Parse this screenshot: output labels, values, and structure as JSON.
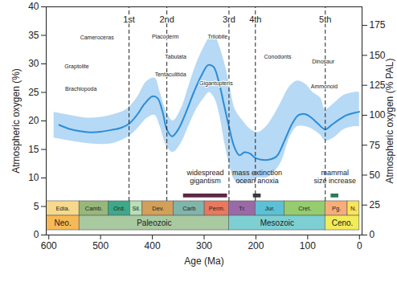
{
  "chart_data": {
    "type": "line",
    "x_label": "Age (Ma)",
    "y_label": "Atmospheric oxygen (%)",
    "y2_label": "Atmospheric oxygen (% PAL)",
    "xlim": [
      605,
      -5
    ],
    "xticks": [
      600,
      500,
      400,
      300,
      200,
      100,
      0
    ],
    "ylim": [
      0,
      40
    ],
    "yticks": [
      0,
      5,
      10,
      15,
      20,
      25,
      30,
      35,
      40
    ],
    "y2lim": [
      0,
      190.5
    ],
    "y2ticks": [
      0,
      25,
      50,
      75,
      100,
      125,
      150,
      175
    ],
    "grid": false,
    "color": "#2b8cd8",
    "x": [
      580,
      560,
      540,
      520,
      500,
      480,
      460,
      445,
      430,
      415,
      400,
      390,
      380,
      372,
      362,
      350,
      335,
      320,
      305,
      292,
      282,
      272,
      262,
      252,
      242,
      232,
      222,
      212,
      201,
      190,
      175,
      160,
      145,
      130,
      118,
      105,
      92,
      80,
      66,
      55,
      40,
      25,
      10,
      0
    ],
    "values": [
      19.3,
      18.6,
      18.2,
      18.0,
      18.1,
      18.4,
      18.8,
      19.5,
      21,
      23,
      24.3,
      24,
      21.5,
      18.5,
      17.3,
      18.5,
      21.5,
      25,
      28,
      29.8,
      29.5,
      27,
      23,
      19,
      15.5,
      14,
      14.5,
      14.3,
      13.5,
      13.2,
      13.2,
      13.8,
      16.5,
      19.5,
      21,
      21.2,
      20.5,
      19.5,
      18.5,
      19.2,
      20.2,
      21,
      21.4,
      21.6
    ],
    "band": {
      "color": "#a9d2f3",
      "x": [
        590,
        560,
        520,
        480,
        450,
        430,
        410,
        395,
        385,
        372,
        360,
        345,
        330,
        315,
        300,
        290,
        280,
        270,
        260,
        250,
        240,
        225,
        210,
        195,
        180,
        165,
        150,
        135,
        120,
        105,
        90,
        75,
        66,
        50,
        30,
        10,
        0
      ],
      "lower": [
        17,
        16.5,
        16,
        16,
        17,
        18.5,
        20.5,
        21,
        19,
        15.5,
        14.5,
        16,
        19,
        22,
        24,
        25,
        24,
        21,
        16,
        12,
        9.5,
        9,
        9.5,
        10,
        10,
        11,
        13,
        17,
        19,
        19,
        18.5,
        17.5,
        16.5,
        17,
        18.5,
        19,
        19
      ],
      "upper": [
        21.5,
        21,
        20.5,
        21,
        22,
        24,
        27,
        27.5,
        25,
        21.5,
        20,
        22,
        26,
        30,
        33,
        34.5,
        35,
        33,
        30,
        26,
        22,
        20,
        18.5,
        18,
        19,
        21,
        23.5,
        26,
        27,
        26.5,
        25,
        24,
        22,
        23,
        24.5,
        25,
        25
      ]
    },
    "extinctions": {
      "line_style": "dashed",
      "labels": [
        "1st",
        "2nd",
        "3rd",
        "4th",
        "5th"
      ],
      "x": [
        445,
        372,
        252,
        201,
        66
      ]
    },
    "annotations": [
      {
        "text": "Cameroceras",
        "x": 507,
        "y": 34.6
      },
      {
        "text": "Graptolite",
        "x": 546,
        "y": 29.6
      },
      {
        "text": "Brachiopoda",
        "x": 538,
        "y": 25.6
      },
      {
        "text": "Placoderm",
        "x": 375,
        "y": 34.8
      },
      {
        "text": "Tabulata",
        "x": 355,
        "y": 31.2
      },
      {
        "text": "Tentaculitida",
        "x": 365,
        "y": 28.2
      },
      {
        "text": "Trilobite",
        "x": 274,
        "y": 34.8
      },
      {
        "text": "Gigantopteris",
        "x": 277,
        "y": 26.6
      },
      {
        "text": "Conodonts",
        "x": 158,
        "y": 31.2
      },
      {
        "text": "Dinosaur",
        "x": 70,
        "y": 30.4
      },
      {
        "text": "Ammonoid",
        "x": 68,
        "y": 26.0
      }
    ],
    "events": [
      {
        "label": "widespread\ngigantism",
        "start": 340,
        "end": 255,
        "color": "#5b2745"
      },
      {
        "label": "mass extinction\nocean anoxia",
        "start": 205,
        "end": 190,
        "color": "#3a3a3a"
      },
      {
        "label": "mammal\nsize increase",
        "start": 55,
        "end": 40,
        "color": "#2e7a55"
      }
    ],
    "periods": [
      {
        "label": "Edia.",
        "start": 635,
        "end": 541,
        "color": "#f6d98a"
      },
      {
        "label": "Camb.",
        "start": 541,
        "end": 485,
        "color": "#98b77a"
      },
      {
        "label": "Ord.",
        "start": 485,
        "end": 443,
        "color": "#3ea88a"
      },
      {
        "label": "Sil.",
        "start": 443,
        "end": 419,
        "color": "#b7dfb8"
      },
      {
        "label": "Dev.",
        "start": 419,
        "end": 359,
        "color": "#d3a05a"
      },
      {
        "label": "Carb",
        "start": 359,
        "end": 299,
        "color": "#7fb5aa"
      },
      {
        "label": "Perm.",
        "start": 299,
        "end": 252,
        "color": "#e8795f"
      },
      {
        "label": "Tr.",
        "start": 252,
        "end": 201,
        "color": "#9a6aa8"
      },
      {
        "label": "Jur.",
        "start": 201,
        "end": 145,
        "color": "#5cc0d6"
      },
      {
        "label": "Cret.",
        "start": 145,
        "end": 66,
        "color": "#95cc6e"
      },
      {
        "label": "Pg.",
        "start": 66,
        "end": 23,
        "color": "#f8ae78"
      },
      {
        "label": "N.",
        "start": 23,
        "end": 0,
        "color": "#f9e45a"
      }
    ],
    "eras": [
      {
        "label": "Neo.",
        "start": 1000,
        "end": 541,
        "color": "#f7b955"
      },
      {
        "label": "Paleozoic",
        "start": 541,
        "end": 252,
        "color": "#a9c9a0"
      },
      {
        "label": "Mesozoic",
        "start": 252,
        "end": 66,
        "color": "#7dcfd2"
      },
      {
        "label": "Ceno.",
        "start": 66,
        "end": 0,
        "color": "#f2ec5a"
      }
    ]
  }
}
